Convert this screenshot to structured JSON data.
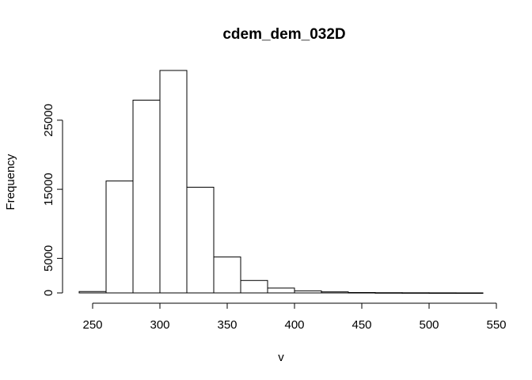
{
  "chart_data": {
    "type": "bar",
    "subtype": "histogram",
    "title": "cdem_dem_032D",
    "xlabel": "v",
    "ylabel": "Frequency",
    "bin_edges": [
      240,
      260,
      280,
      300,
      320,
      340,
      360,
      380,
      400,
      420,
      440,
      460,
      480,
      500,
      520,
      540
    ],
    "values": [
      200,
      16200,
      27900,
      32200,
      15300,
      5200,
      1800,
      700,
      300,
      150,
      60,
      30,
      20,
      10,
      5
    ],
    "xlim": [
      240,
      550
    ],
    "ylim": [
      0,
      32200
    ],
    "x_ticks": [
      "250",
      "300",
      "350",
      "400",
      "450",
      "500",
      "550"
    ],
    "y_ticks": [
      "0",
      "5000",
      "15000",
      "25000"
    ],
    "grid": false,
    "legend": "none"
  }
}
